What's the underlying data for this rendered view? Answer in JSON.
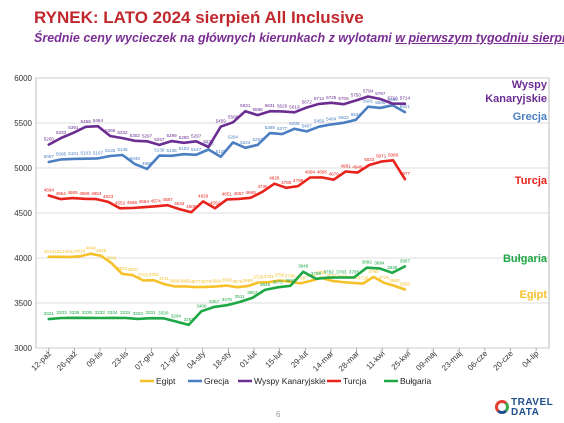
{
  "header": {
    "title": "RYNEK: LATO 2024 sierpień All Inclusive",
    "subtitle_a": "Średnie ceny wycieczek na głównych kierunkach z wylotami ",
    "subtitle_b": "w pierwszym tygodniu sierpnia"
  },
  "footer": {
    "page_number": "6",
    "logo_top": "TRAVEL",
    "logo_bottom": "DATA"
  },
  "colors": {
    "Egipt": "#f6c12a",
    "Grecja": "#4a7fc1",
    "Wyspy Kanaryjskie": "#6b2d91",
    "Turcja": "#e8231c",
    "Bułgaria": "#1ea845"
  },
  "chart_data": {
    "type": "line",
    "ylim": [
      3000,
      6000
    ],
    "yticks": [
      "3000",
      "3500",
      "4000",
      "4500",
      "5000",
      "5500",
      "6000"
    ],
    "grid": true,
    "legend_position": "bottom",
    "x_tick_labels": [
      "12-paź",
      "26-paź",
      "09-lis",
      "23-lis",
      "07-gru",
      "21-gru",
      "04-sty",
      "18-sty",
      "01-lut",
      "15-lut",
      "29-lut",
      "14-mar",
      "28-mar",
      "11-kwi",
      "25-kwi",
      "09-maj",
      "23-maj",
      "06-cze",
      "20-cze",
      "04-lip"
    ],
    "series": [
      {
        "name": "Egipt",
        "values": [
          4013,
          4013,
          4012,
          4019,
          4048,
          4025,
          3941,
          3824,
          3810,
          3751,
          3753,
          3711,
          3684,
          3685,
          3677,
          3679,
          3684,
          3693,
          3676,
          3688,
          3728,
          3731,
          3750,
          3738,
          3718,
          3746,
          3780,
          3747,
          3733,
          3723,
          3716,
          3790,
          3725,
          3690,
          3650
        ],
        "labels": [
          "4013",
          "4013",
          "4012",
          "4019",
          "4048",
          "4025",
          "3941",
          "3824",
          "3810",
          "3751",
          "3753",
          "3711",
          "3684",
          "3685",
          "3677",
          "3679",
          "3684",
          "3693",
          "3676",
          "3688",
          "3728",
          "3731",
          "3750",
          "3738",
          "3718",
          "3746",
          "3780",
          "3747",
          "3733",
          "3723",
          "3716",
          "3790",
          "3725",
          "3690",
          "3650"
        ],
        "end_label": "Egipt"
      },
      {
        "name": "Grecja",
        "values": [
          5067,
          5095,
          5101,
          5103,
          5107,
          5133,
          5145,
          5045,
          4990,
          5138,
          5136,
          5153,
          5147,
          5206,
          5125,
          5284,
          5224,
          5257,
          5388,
          5377,
          5435,
          5407,
          5459,
          5484,
          5502,
          5534,
          5681,
          5668,
          5698,
          5621
        ],
        "labels": [
          "5067",
          "5095",
          "5101",
          "5103",
          "5107",
          "5133",
          "5145",
          "5045",
          "4990",
          "5138",
          "5136",
          "5153",
          "5147",
          "5206",
          "5125",
          "5284",
          "5224",
          "5257",
          "5388",
          "5377",
          "5435",
          "5407",
          "5459",
          "5484",
          "5502",
          "5534",
          "5681",
          "5668",
          "5698",
          "5621"
        ],
        "end_label": "Grecja"
      },
      {
        "name": "Wyspy Kanaryjskie",
        "values": [
          5260,
          5333,
          5391,
          5458,
          5464,
          5356,
          5332,
          5302,
          5297,
          5257,
          5299,
          5280,
          5297,
          5232,
          5459,
          5508,
          5631,
          5588,
          5631,
          5629,
          5619,
          5672,
          5712,
          5725,
          5709,
          5750,
          5794,
          5767,
          5716,
          5714
        ],
        "labels": [
          "5260",
          "5333",
          "5391",
          "5458",
          "5464",
          "5356",
          "5332",
          "5302",
          "5297",
          "5257",
          "5299",
          "5280",
          "5297",
          "5232",
          "5459",
          "5508",
          "5631",
          "5588",
          "5631",
          "5629",
          "5619",
          "5672",
          "5712",
          "5725",
          "5709",
          "5750",
          "5794",
          "5767",
          "5716",
          "5714"
        ],
        "end_label_1": "Wyspy",
        "end_label_2": "Kanaryjskie"
      },
      {
        "name": "Turcja",
        "values": [
          4694,
          4654,
          4665,
          4658,
          4654,
          4623,
          4552,
          4556,
          4564,
          4574,
          4587,
          4543,
          4509,
          4629,
          4552,
          4651,
          4657,
          4669,
          4735,
          4826,
          4780,
          4799,
          4894,
          4895,
          4870,
          4961,
          4949,
          5033,
          5071,
          5086,
          4877
        ],
        "labels": [
          "4694",
          "4654",
          "4665",
          "4658",
          "4654",
          "4623",
          "4552",
          "4556",
          "4564",
          "4574",
          "4587",
          "4543",
          "4509",
          "4629",
          "4552",
          "4651",
          "4657",
          "4669",
          "4735",
          "4826",
          "4780",
          "4799",
          "4894",
          "4895",
          "4870",
          "4961",
          "4949",
          "5033",
          "5071",
          "5086",
          "4877"
        ],
        "end_label": "Turcja"
      },
      {
        "name": "Bułgaria",
        "values": [
          3321,
          3333,
          3336,
          3335,
          3333,
          3334,
          3334,
          3323,
          3331,
          3330,
          3294,
          3257,
          3408,
          3457,
          3476,
          3511,
          3557,
          3645,
          3675,
          3691,
          3848,
          3769,
          3782,
          3783,
          3785,
          3892,
          3884,
          3836,
          3907
        ],
        "labels": [
          "3321",
          "3333",
          "3336",
          "3335",
          "3333",
          "3334",
          "3334",
          "3323",
          "3331",
          "3330",
          "3294",
          "3257",
          "3408",
          "3457",
          "3476",
          "3511",
          "3557",
          "3645",
          "3675",
          "3691",
          "3848",
          "3769",
          "3782",
          "3783",
          "3785",
          "3892",
          "3884",
          "3836",
          "3907"
        ],
        "end_label": "Bułgaria"
      }
    ]
  }
}
